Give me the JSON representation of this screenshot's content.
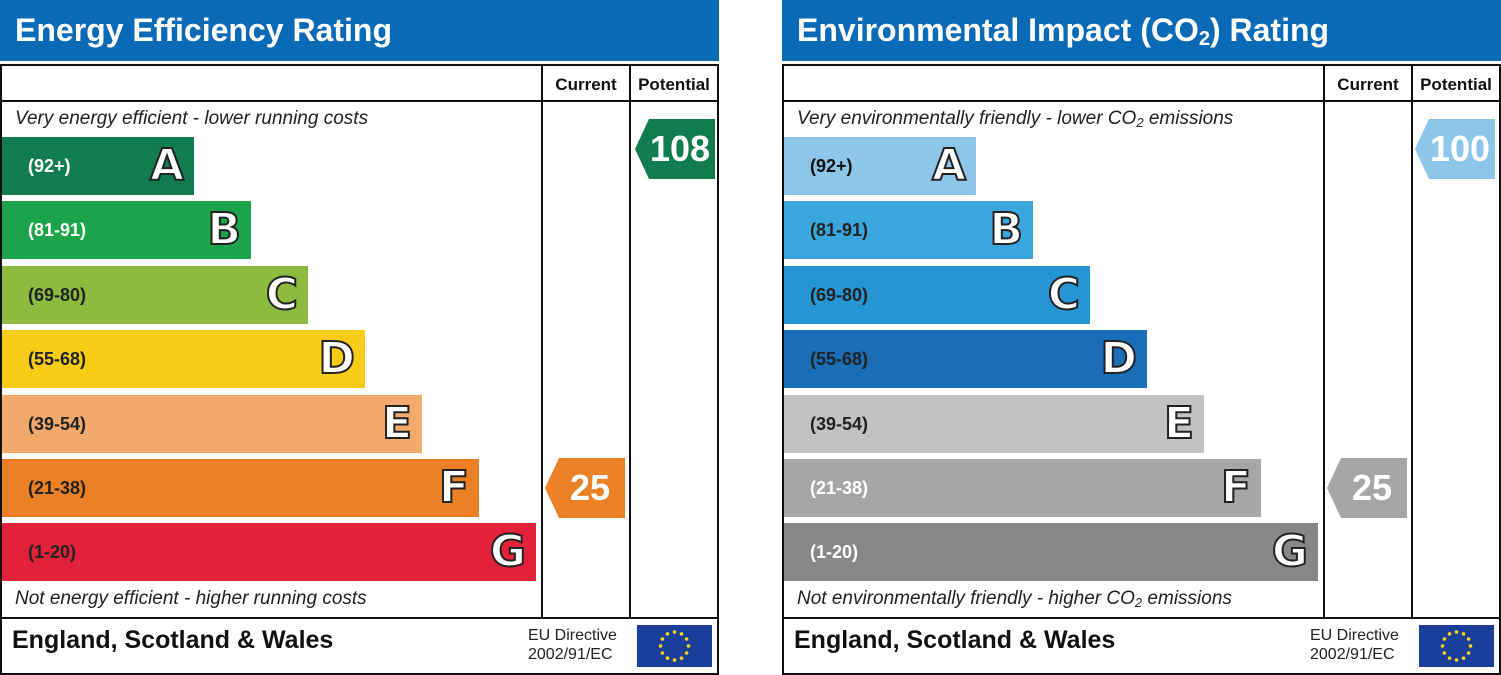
{
  "chart_data": [
    {
      "type": "bar",
      "title": "Energy Efficiency Rating",
      "columns": [
        "Current",
        "Potential"
      ],
      "top_caption": "Very energy efficient - lower running costs",
      "bottom_caption": "Not energy efficient - higher running costs",
      "bands": [
        {
          "label": "A",
          "range": "(92+)",
          "color": "#127c51",
          "text_color": "#ffffff"
        },
        {
          "label": "B",
          "range": "(81-91)",
          "color": "#1ba44a",
          "text_color": "#ffffff"
        },
        {
          "label": "C",
          "range": "(69-80)",
          "color": "#8cbb40",
          "text_color": "#222222"
        },
        {
          "label": "D",
          "range": "(55-68)",
          "color": "#f7cc17",
          "text_color": "#222222"
        },
        {
          "label": "E",
          "range": "(39-54)",
          "color": "#f1aa6b",
          "text_color": "#222222"
        },
        {
          "label": "F",
          "range": "(21-38)",
          "color": "#ec8025",
          "text_color": "#222222"
        },
        {
          "label": "G",
          "range": "(1-20)",
          "color": "#e2223b",
          "text_color": "#222222"
        }
      ],
      "current": {
        "value": 25,
        "band": "F",
        "color": "#ec8025"
      },
      "potential": {
        "value": 108,
        "band": "A",
        "color": "#127c51"
      },
      "footer_region": "England, Scotland & Wales",
      "footer_directive": [
        "EU Directive",
        "2002/91/EC"
      ]
    },
    {
      "type": "bar",
      "title": "Environmental Impact (CO2) Rating",
      "columns": [
        "Current",
        "Potential"
      ],
      "top_caption": "Very environmentally friendly - lower CO2 emissions",
      "bottom_caption": "Not environmentally friendly - higher CO2 emissions",
      "bands": [
        {
          "label": "A",
          "range": "(92+)",
          "color": "#8dc6e8",
          "text_color": "#111111"
        },
        {
          "label": "B",
          "range": "(81-91)",
          "color": "#3ba6de",
          "text_color": "#222222"
        },
        {
          "label": "C",
          "range": "(69-80)",
          "color": "#2595d4",
          "text_color": "#222222"
        },
        {
          "label": "D",
          "range": "(55-68)",
          "color": "#1a6eb8",
          "text_color": "#222222"
        },
        {
          "label": "E",
          "range": "(39-54)",
          "color": "#c2c2c2",
          "text_color": "#222222"
        },
        {
          "label": "F",
          "range": "(21-38)",
          "color": "#a6a6a6",
          "text_color": "#ffffff"
        },
        {
          "label": "G",
          "range": "(1-20)",
          "color": "#878787",
          "text_color": "#ffffff"
        }
      ],
      "current": {
        "value": 25,
        "band": "F",
        "color": "#a6a6a6"
      },
      "potential": {
        "value": 100,
        "band": "A",
        "color": "#8dc6e8"
      },
      "footer_region": "England, Scotland & Wales",
      "footer_directive": [
        "EU Directive",
        "2002/91/EC"
      ]
    }
  ]
}
